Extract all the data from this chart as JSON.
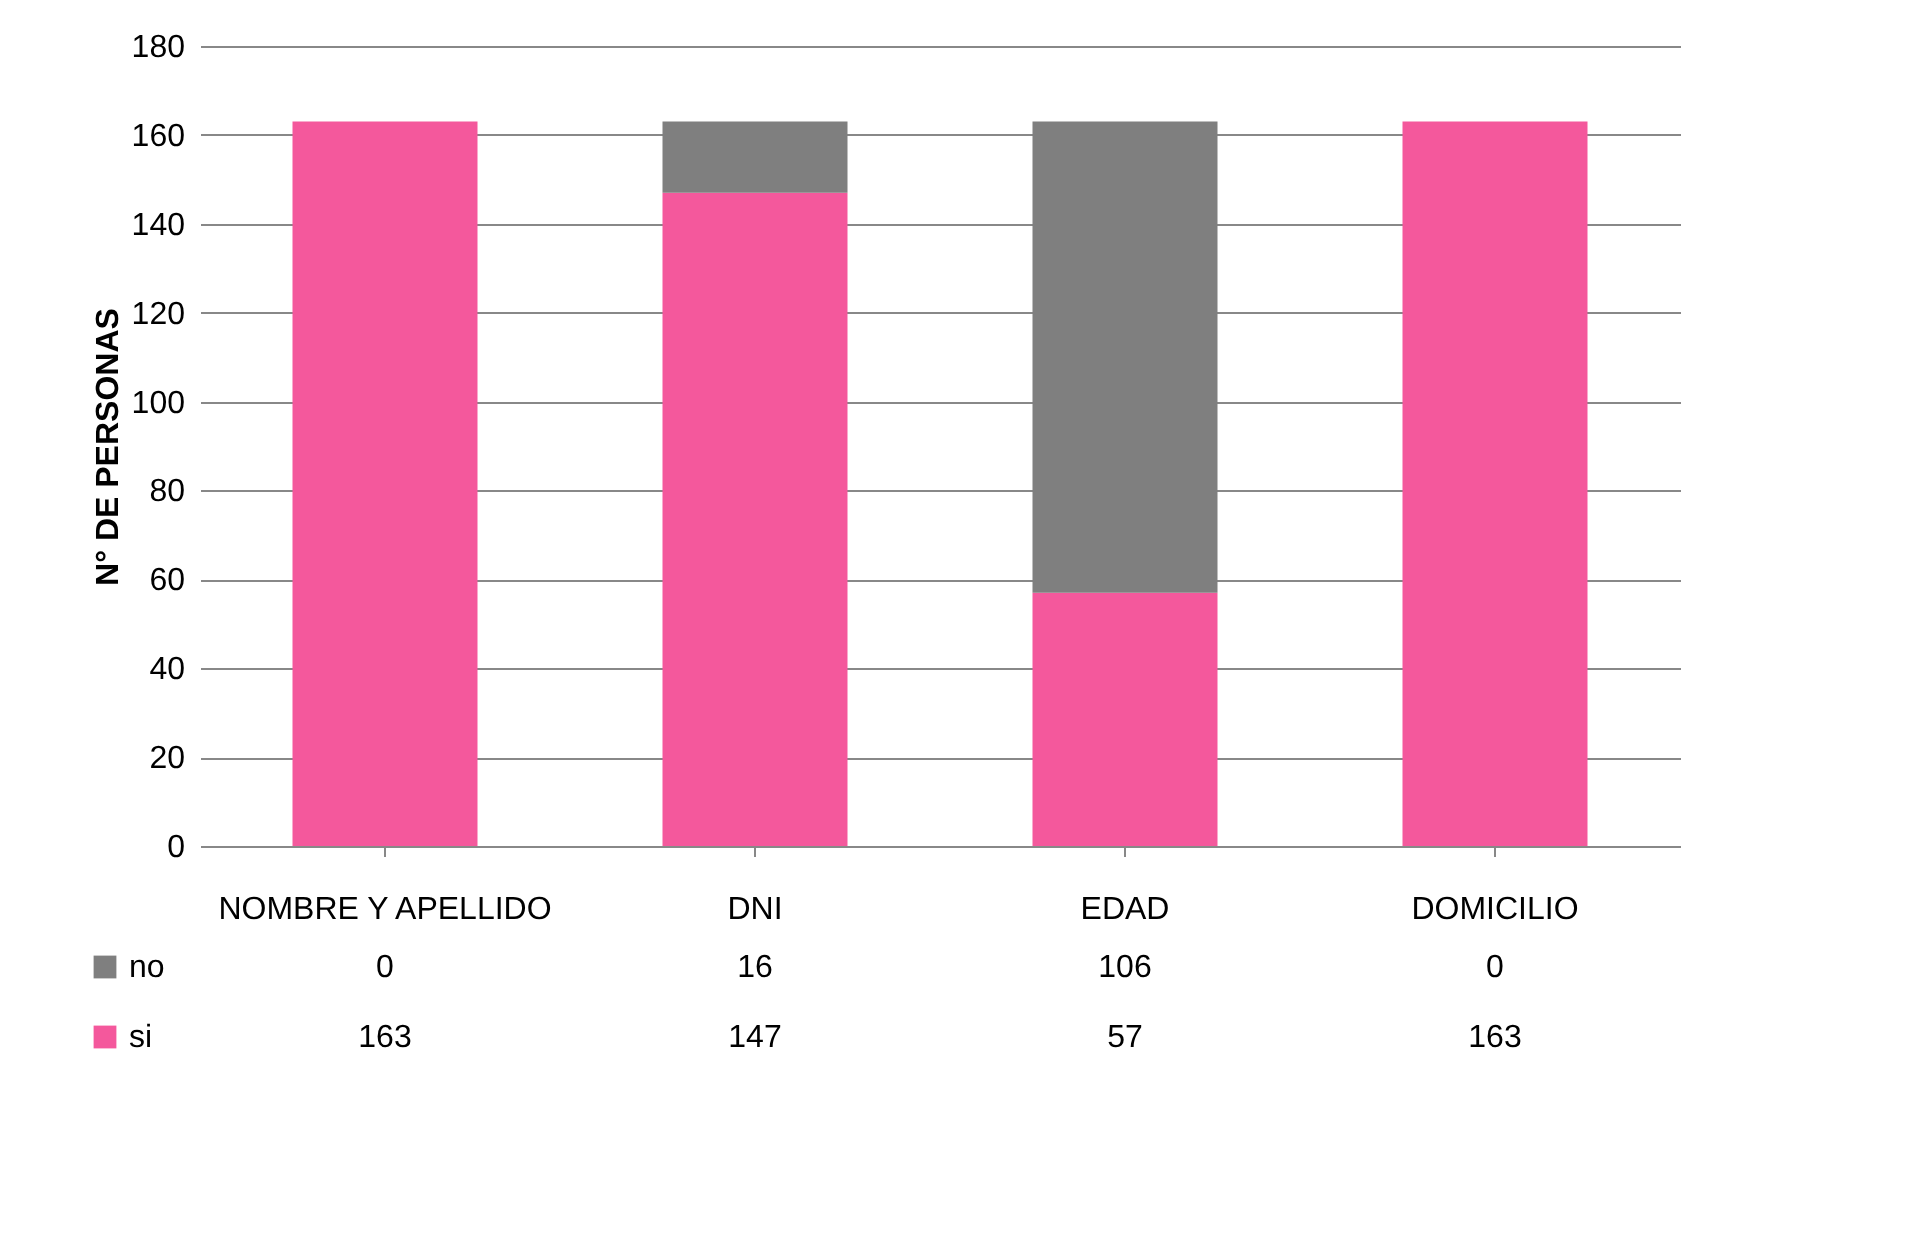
{
  "chart_data": {
    "type": "bar",
    "stacked": true,
    "ylabel": "N° DE PERSONAS",
    "categories": [
      "NOMBRE Y APELLIDO",
      "DNI",
      "EDAD",
      "DOMICILIO"
    ],
    "series": [
      {
        "name": "si",
        "color": "#f4589c",
        "values": [
          163,
          147,
          57,
          163
        ]
      },
      {
        "name": "no",
        "color": "#7f7f7f",
        "values": [
          0,
          16,
          106,
          0
        ]
      }
    ],
    "ylim": [
      0,
      180
    ],
    "yticks": [
      0,
      20,
      40,
      60,
      80,
      100,
      120,
      140,
      160,
      180
    ],
    "grid": "y",
    "legend": "bottom left",
    "data_labels": true
  }
}
